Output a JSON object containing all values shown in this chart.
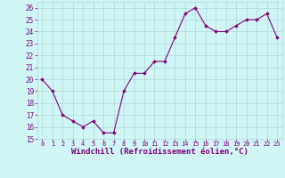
{
  "x": [
    0,
    1,
    2,
    3,
    4,
    5,
    6,
    7,
    8,
    9,
    10,
    11,
    12,
    13,
    14,
    15,
    16,
    17,
    18,
    19,
    20,
    21,
    22,
    23
  ],
  "y": [
    20,
    19,
    17,
    16.5,
    16,
    16.5,
    15.5,
    15.5,
    19,
    20.5,
    20.5,
    21.5,
    21.5,
    23.5,
    25.5,
    26,
    24.5,
    24,
    24,
    24.5,
    25,
    25,
    25.5,
    23.5
  ],
  "line_color": "#800080",
  "marker": "D",
  "marker_size": 1.8,
  "linewidth": 0.8,
  "xlabel": "Windchill (Refroidissement éolien,°C)",
  "xlabel_fontsize": 6.5,
  "bg_color": "#cff5f5",
  "grid_color": "#b0d8d8",
  "tick_color": "#800080",
  "ylim": [
    15,
    26.5
  ],
  "yticks": [
    15,
    16,
    17,
    18,
    19,
    20,
    21,
    22,
    23,
    24,
    25,
    26
  ],
  "xlim": [
    -0.5,
    23.5
  ],
  "xticks": [
    0,
    1,
    2,
    3,
    4,
    5,
    6,
    7,
    8,
    9,
    10,
    11,
    12,
    13,
    14,
    15,
    16,
    17,
    18,
    19,
    20,
    21,
    22,
    23
  ],
  "tick_fontsize": 5.0,
  "ytick_fontsize": 5.5
}
